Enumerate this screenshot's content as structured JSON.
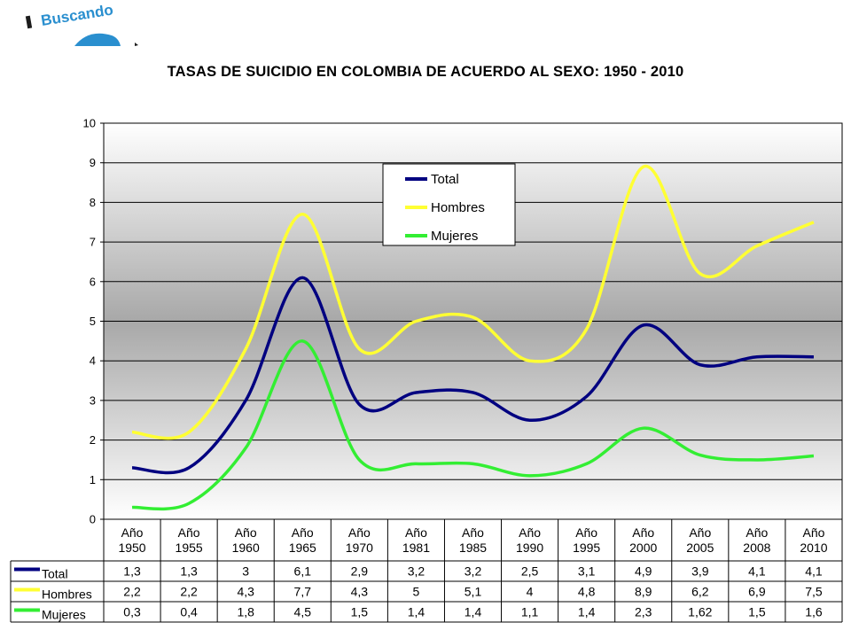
{
  "logo": {
    "text": "Buscando"
  },
  "chart_data": {
    "type": "line",
    "title": "TASAS DE SUICIDIO EN COLOMBIA DE ACUERDO AL SEXO: 1950 - 2010",
    "categories": [
      [
        "Año",
        "1950"
      ],
      [
        "Año",
        "1955"
      ],
      [
        "Año",
        "1960"
      ],
      [
        "Año",
        "1965"
      ],
      [
        "Año",
        "1970"
      ],
      [
        "Año",
        "1981"
      ],
      [
        "Año",
        "1985"
      ],
      [
        "Año",
        "1990"
      ],
      [
        "Año",
        "1995"
      ],
      [
        "Año",
        "2000"
      ],
      [
        "Año",
        "2005"
      ],
      [
        "Año",
        "2008"
      ],
      [
        "Año",
        "2010"
      ]
    ],
    "ylim": [
      0,
      10
    ],
    "yticks": [
      "0",
      "1",
      "2",
      "3",
      "4",
      "5",
      "6",
      "7",
      "8",
      "9",
      "10"
    ],
    "grid": true,
    "legend": "top-center",
    "series": [
      {
        "name": "Total",
        "color": "#000080",
        "values": [
          1.3,
          1.3,
          3,
          6.1,
          2.9,
          3.2,
          3.2,
          2.5,
          3.1,
          4.9,
          3.9,
          4.1,
          4.1
        ],
        "labels": [
          "1,3",
          "1,3",
          "3",
          "6,1",
          "2,9",
          "3,2",
          "3,2",
          "2,5",
          "3,1",
          "4,9",
          "3,9",
          "4,1",
          "4,1"
        ]
      },
      {
        "name": "Hombres",
        "color": "#ffff33",
        "values": [
          2.2,
          2.2,
          4.3,
          7.7,
          4.3,
          5,
          5.1,
          4,
          4.8,
          8.9,
          6.2,
          6.9,
          7.5
        ],
        "labels": [
          "2,2",
          "2,2",
          "4,3",
          "7,7",
          "4,3",
          "5",
          "5,1",
          "4",
          "4,8",
          "8,9",
          "6,2",
          "6,9",
          "7,5"
        ]
      },
      {
        "name": "Mujeres",
        "color": "#33ee33",
        "values": [
          0.3,
          0.4,
          1.8,
          4.5,
          1.5,
          1.4,
          1.4,
          1.1,
          1.4,
          2.3,
          1.62,
          1.5,
          1.6
        ],
        "labels": [
          "0,3",
          "0,4",
          "1,8",
          "4,5",
          "1,5",
          "1,4",
          "1,4",
          "1,1",
          "1,4",
          "2,3",
          "1,62",
          "1,5",
          "1,6"
        ]
      }
    ]
  }
}
